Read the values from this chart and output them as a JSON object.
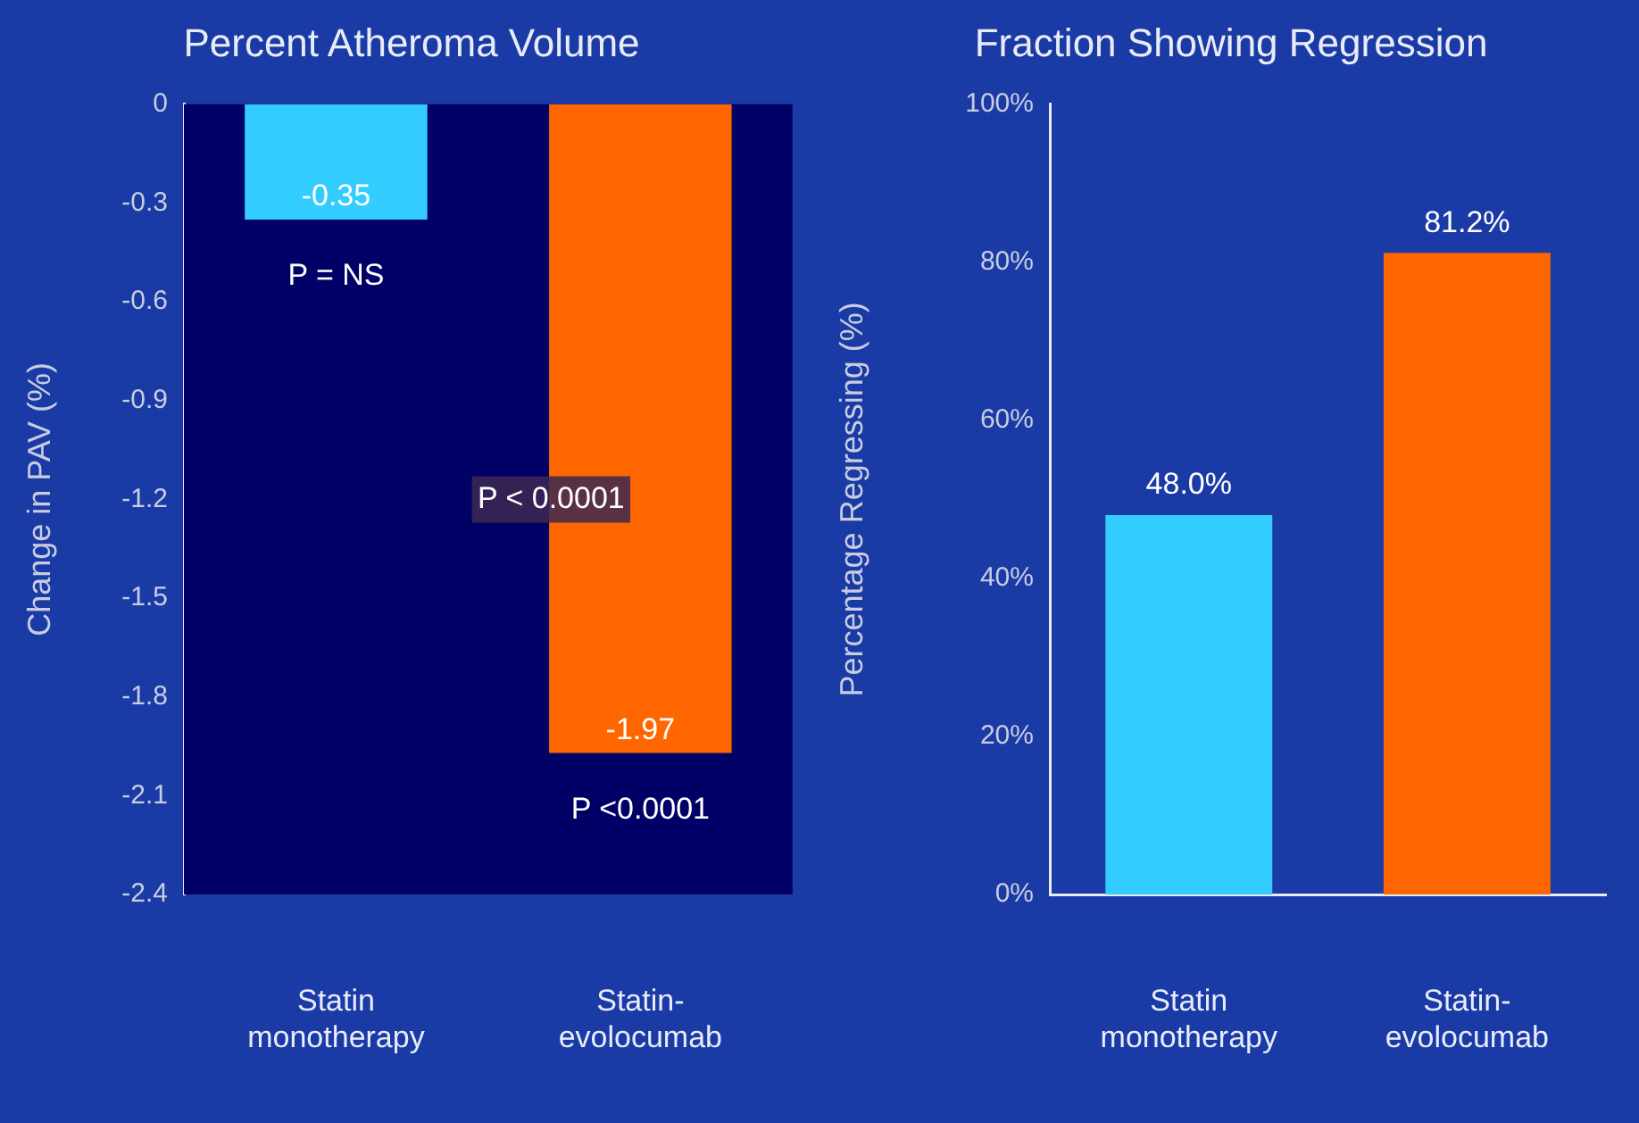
{
  "chart_data": [
    {
      "type": "bar",
      "title": "Percent Atheroma Volume",
      "ylabel": "Change in PAV (%)",
      "categories": [
        "Statin\nmonotherapy",
        "Statin-\nevolocumab"
      ],
      "values": [
        -0.35,
        -1.97
      ],
      "colors": [
        "#33ccff",
        "#ff6600"
      ],
      "data_labels": true,
      "ylim": [
        -2.4,
        0
      ],
      "yticks": [
        0,
        -0.3,
        -0.6,
        -0.9,
        -1.2,
        -1.5,
        -1.8,
        -2.1,
        -2.4
      ],
      "annotations": [
        "P = NS",
        "P < 0.0001",
        "P <0.0001"
      ]
    },
    {
      "type": "bar",
      "title": "Fraction Showing Regression",
      "ylabel": "Percentage Regressing (%)",
      "categories": [
        "Statin\nmonotherapy",
        "Statin-\nevolocumab"
      ],
      "values": [
        48.0,
        81.2
      ],
      "colors": [
        "#33ccff",
        "#ff6600"
      ],
      "value_labels": [
        "48.0%",
        "81.2%"
      ],
      "ylim": [
        0,
        100
      ],
      "yticks": [
        {
          "value": 0,
          "label": "0%"
        },
        {
          "value": 20,
          "label": "20%"
        },
        {
          "value": 40,
          "label": "40%"
        },
        {
          "value": 60,
          "label": "60%"
        },
        {
          "value": 80,
          "label": "80%"
        },
        {
          "value": 100,
          "label": "100%"
        }
      ]
    }
  ]
}
